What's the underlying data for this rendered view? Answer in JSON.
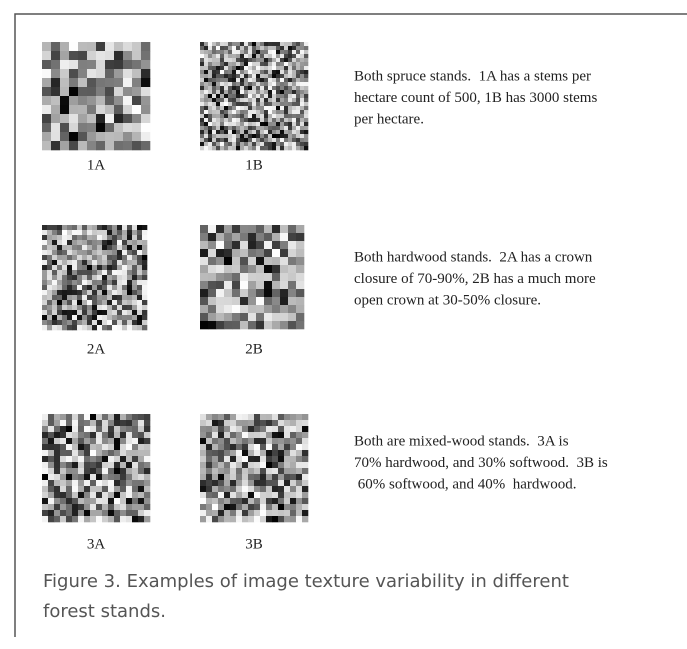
{
  "figure": {
    "rows": [
      {
        "labels": [
          "1A",
          "1B"
        ],
        "description": [
          "Both spruce stands.  1A has a stems per",
          "hectare count of 500, 1B has 3000 stems",
          "per hectare."
        ]
      },
      {
        "labels": [
          "2A",
          "2B"
        ],
        "description": [
          "Both hardwood stands.  2A has a crown",
          "closure of 70-90%, 2B has a much more",
          "open crown at 30-50% closure."
        ]
      },
      {
        "labels": [
          "3A",
          "3B"
        ],
        "description": [
          "Both are mixed-wood stands.  3A is",
          "70% hardwood, and 30% softwood.  3B is",
          " 60% softwood, and 40%  hardwood."
        ]
      }
    ],
    "caption": [
      "Figure 3.  Examples of image texture variability in different",
      "forest stands."
    ]
  }
}
